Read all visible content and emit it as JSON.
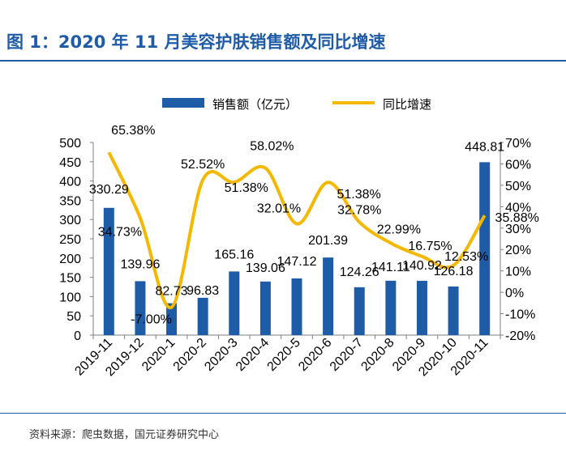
{
  "header": {
    "title": "图 1：2020 年 11 月美容护肤销售额及同比增速"
  },
  "footer": {
    "source": "资料来源：爬虫数据，国元证券研究中心"
  },
  "colors": {
    "title": "#1f5ca8",
    "bar": "#1f5ca8",
    "line": "#f5b800",
    "text": "#000000"
  },
  "chart_data": {
    "type": "bar",
    "title": "",
    "categories": [
      "2019-11",
      "2019-12",
      "2020-1",
      "2020-2",
      "2020-3",
      "2020-4",
      "2020-5",
      "2020-6",
      "2020-7",
      "2020-8",
      "2020-9",
      "2020-10",
      "2020-11"
    ],
    "series": [
      {
        "name": "销售额（亿元）",
        "type": "bar",
        "axis": "left",
        "values": [
          330.29,
          139.96,
          82.73,
          96.83,
          165.16,
          139.06,
          147.12,
          201.39,
          124.26,
          141.11,
          140.92,
          126.18,
          448.81
        ],
        "labels": [
          "330.29",
          "139.96",
          "82.73",
          "96.83",
          "165.16",
          "139.06",
          "147.12",
          "201.39",
          "124.26",
          "141.11",
          "140.92",
          "126.18",
          "448.81"
        ]
      },
      {
        "name": "同比增速",
        "type": "line",
        "axis": "right",
        "values": [
          65.38,
          34.73,
          -7.0,
          52.52,
          51.38,
          58.02,
          32.01,
          51.38,
          32.78,
          22.99,
          16.75,
          12.53,
          35.88
        ],
        "labels": [
          "65.38%",
          "34.73%",
          "-7.00%",
          "52.52%",
          "51.38%",
          "58.02%",
          "32.01%",
          "51.38%",
          "32.78%",
          "22.99%",
          "16.75%",
          "12.53%",
          "35.88%"
        ]
      }
    ],
    "yleft": {
      "lim": [
        0,
        500
      ],
      "ticks": [
        "0",
        "50",
        "100",
        "150",
        "200",
        "250",
        "300",
        "350",
        "400",
        "450",
        "500"
      ]
    },
    "yright": {
      "lim": [
        -20,
        70
      ],
      "ticks": [
        "-20%",
        "-10%",
        "0%",
        "10%",
        "20%",
        "30%",
        "40%",
        "50%",
        "60%",
        "70%"
      ]
    },
    "legend": {
      "position": "top-center"
    }
  }
}
